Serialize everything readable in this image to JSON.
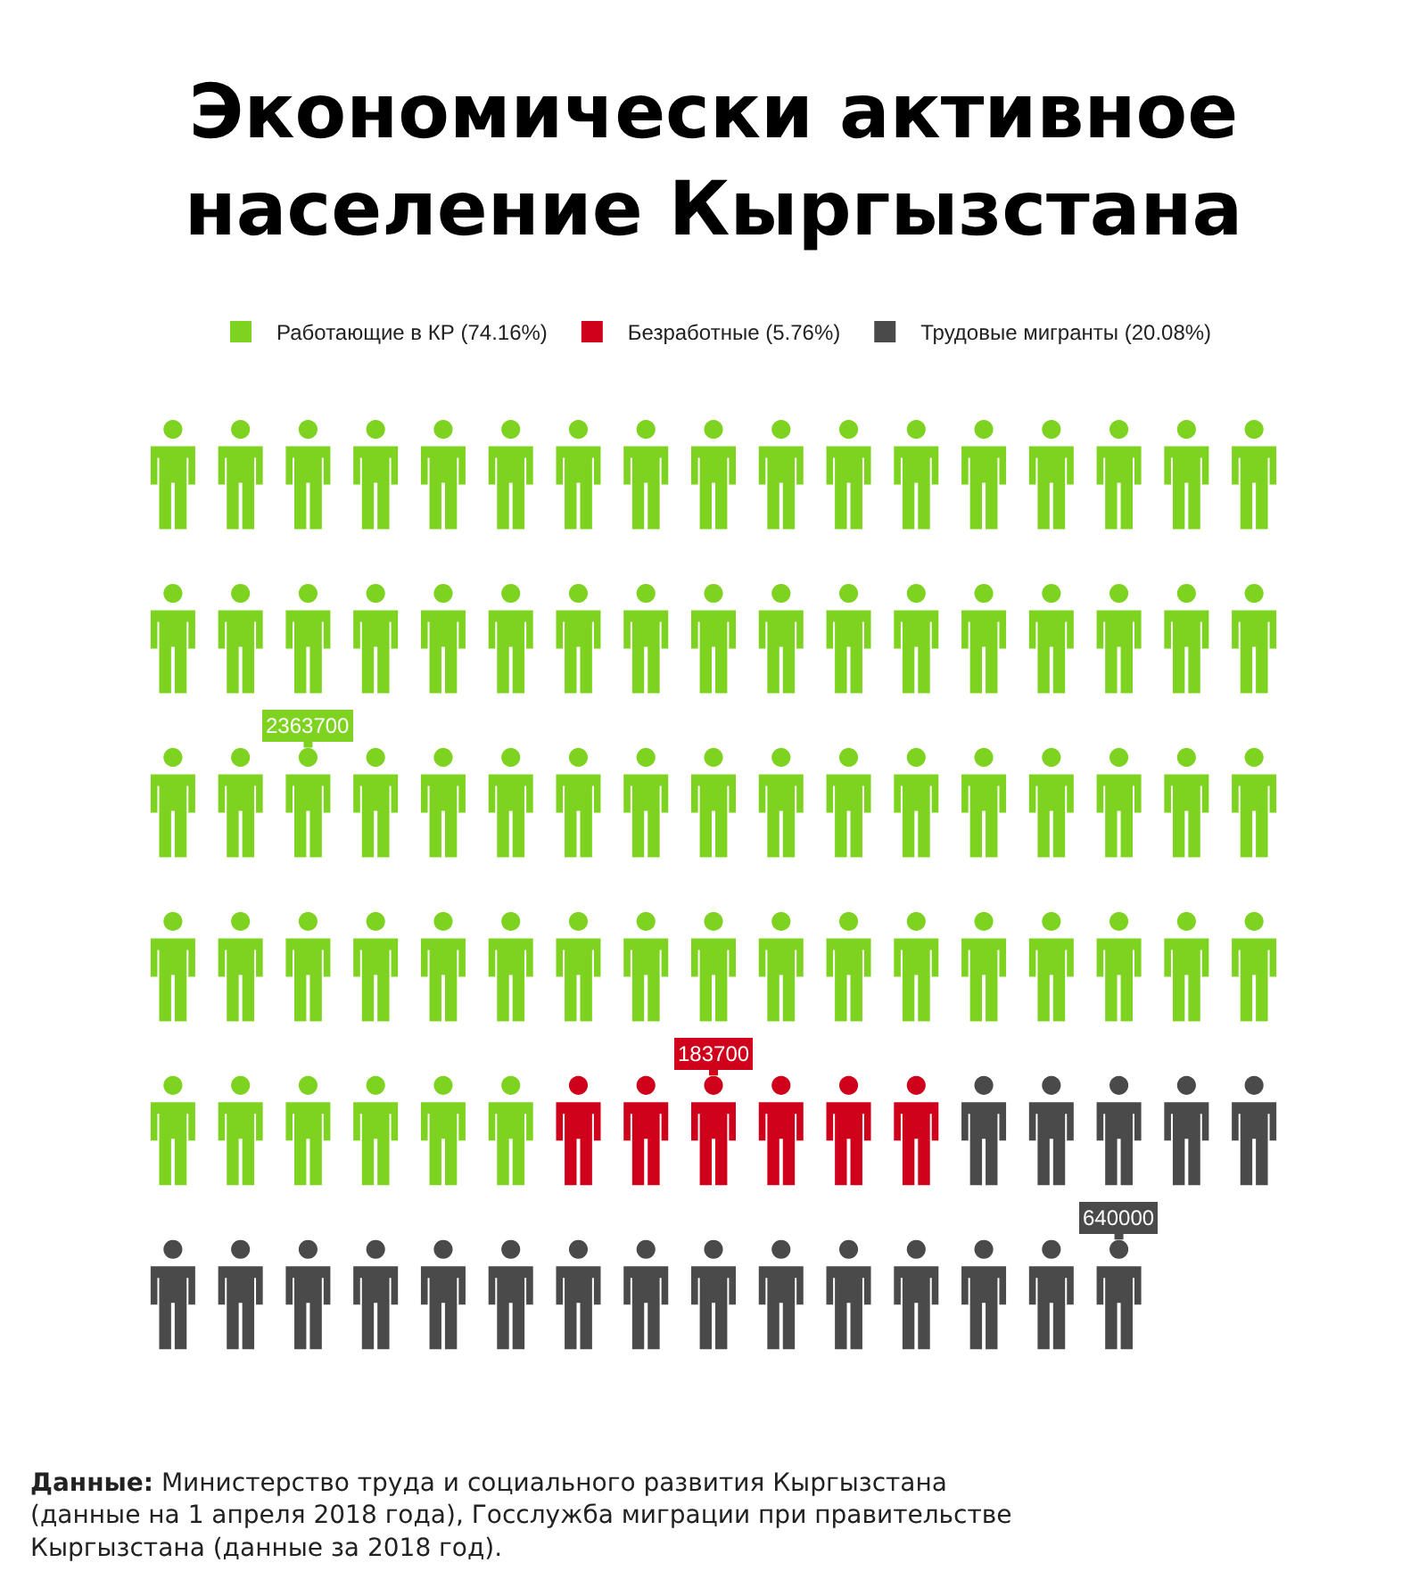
{
  "chart_data": {
    "type": "other",
    "title": "Экономически активное население Кыргызстана",
    "categories": [
      "Работающие в КР (74.16%)",
      "Безработные (5.76%)",
      "Трудовые мигранты (20.08%)"
    ],
    "values": [
      2363700,
      183700,
      640000
    ],
    "colors": [
      "#7ed321",
      "#d0021b",
      "#4a4a4a"
    ],
    "data_labels": true,
    "annotations": [
      "Данные: Министерство труда и социального развития Кыргызстана (данные на 1 апреля 2018 года), Госслужба миграции при правительстве Кыргызстана (данные за 2018 год)."
    ]
  }
}
